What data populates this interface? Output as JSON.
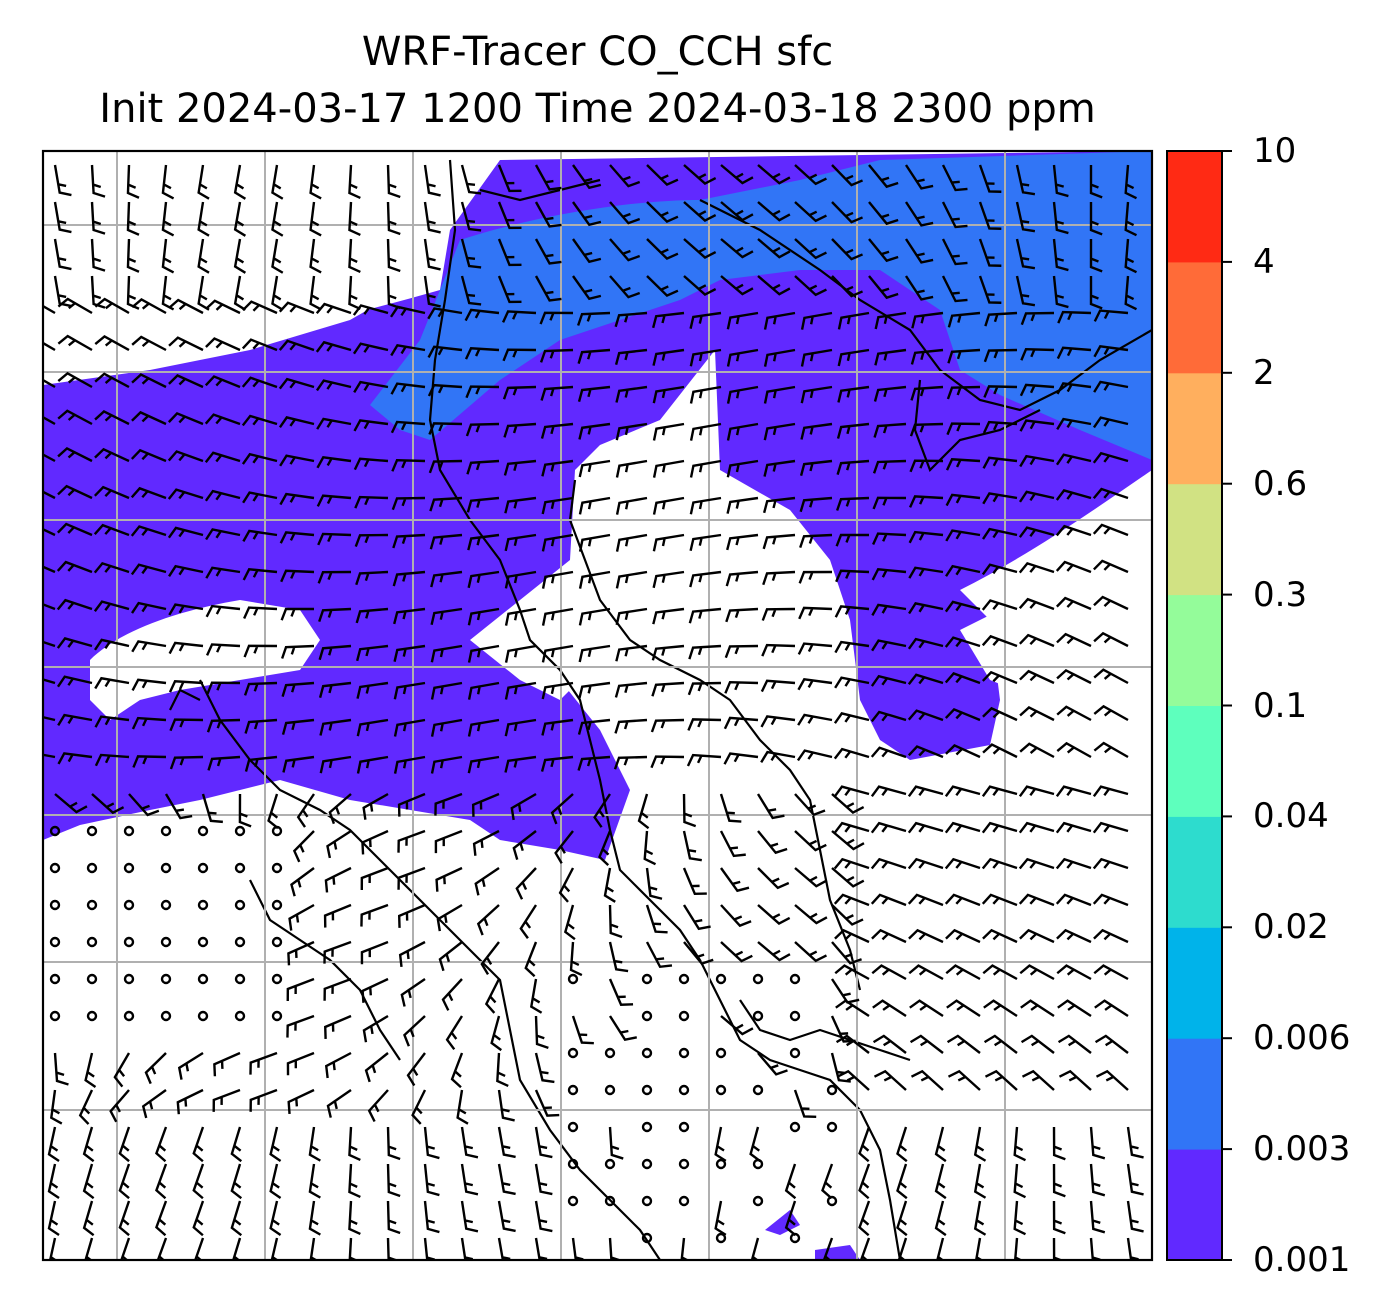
{
  "title": {
    "line1": "WRF-Tracer CO_CCH sfc",
    "line2": "Init 2024-03-17 1200 Time 2024-03-18 2300 ppm"
  },
  "colorbar": {
    "levels": [
      "0.001",
      "0.003",
      "0.006",
      "0.02",
      "0.04",
      "0.1",
      "0.3",
      "0.6",
      "2",
      "4",
      "10"
    ],
    "colors": [
      "#6129ff",
      "#3175f6",
      "#00b3ea",
      "#2ddcce",
      "#5effbd",
      "#94fc9a",
      "#d1e283",
      "#ffaf5e",
      "#ff6b38",
      "#ff2a14"
    ]
  },
  "map": {
    "fill_colors": {
      "level1": "#6129ff",
      "level2": "#3175f6"
    },
    "grid_color": "#b0b0b0"
  }
}
